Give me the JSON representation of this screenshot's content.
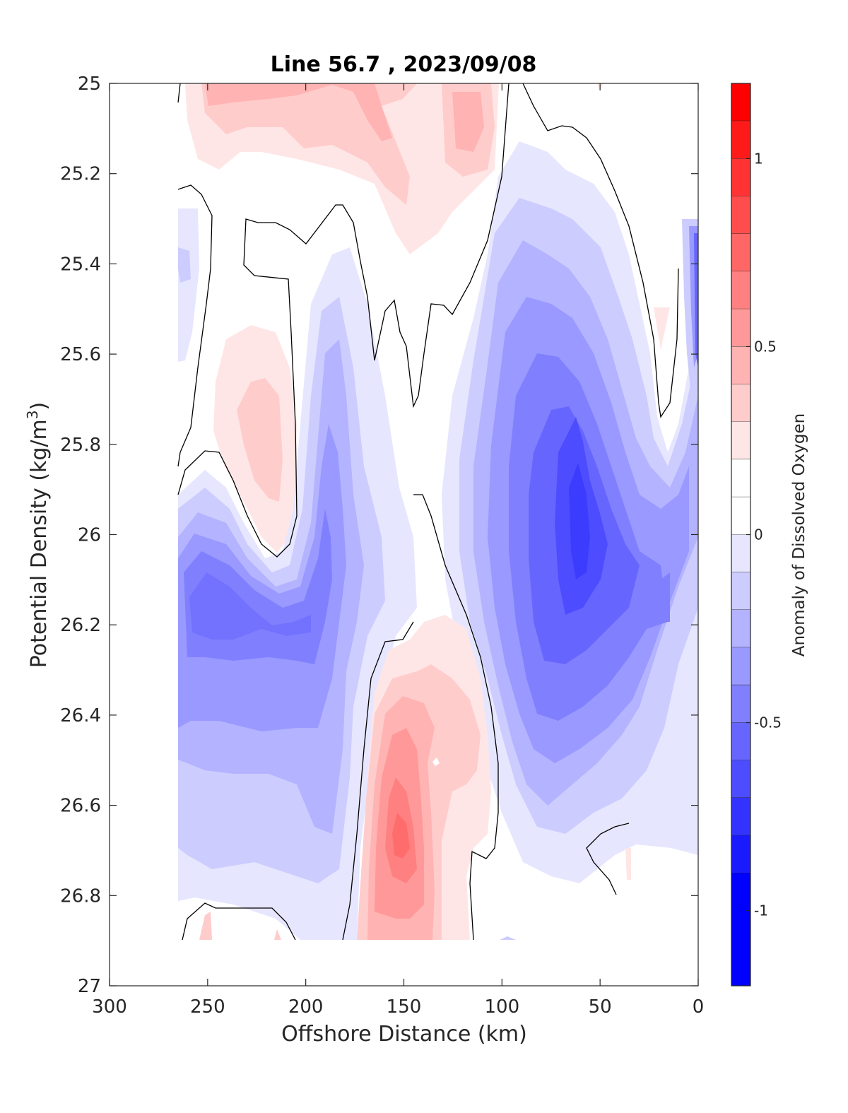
{
  "chart_data": {
    "type": "contour",
    "title": "Line 56.7 , 2023/09/08",
    "xlabel": "Offshore Distance (km)",
    "ylabel_main": "Potential Density (kg/m",
    "ylabel_sup": "3",
    "ylabel_close": ")",
    "xlim": [
      300,
      0
    ],
    "ylim": [
      25,
      27
    ],
    "x_ticks": [
      300,
      250,
      200,
      150,
      100,
      50,
      0
    ],
    "y_ticks": [
      25,
      25.2,
      25.4,
      25.6,
      25.8,
      26,
      26.2,
      26.4,
      26.6,
      26.8,
      27
    ],
    "y_tick_labels": [
      "25",
      "25.2",
      "25.4",
      "25.6",
      "25.8",
      "26",
      "26.2",
      "26.4",
      "26.6",
      "26.8",
      "27"
    ],
    "colorbar": {
      "label": "Anomaly of Dissolved Oxygen",
      "range": [
        -1.2,
        1.2
      ],
      "ticks": [
        1,
        0.5,
        0,
        -0.5,
        -1
      ],
      "tick_labels": [
        "1",
        "0.5",
        "0",
        "-0.5",
        "-1"
      ],
      "levels": [
        {
          "from": 1.1,
          "to": 1.2,
          "color": "#ff0000"
        },
        {
          "from": 1.0,
          "to": 1.1,
          "color": "#ff1a1a"
        },
        {
          "from": 0.9,
          "to": 1.0,
          "color": "#ff3333"
        },
        {
          "from": 0.8,
          "to": 0.9,
          "color": "#ff4d4d"
        },
        {
          "from": 0.7,
          "to": 0.8,
          "color": "#ff6666"
        },
        {
          "from": 0.6,
          "to": 0.7,
          "color": "#ff8080"
        },
        {
          "from": 0.5,
          "to": 0.6,
          "color": "#ff9999"
        },
        {
          "from": 0.4,
          "to": 0.5,
          "color": "#ffb3b3"
        },
        {
          "from": 0.3,
          "to": 0.4,
          "color": "#ffcccc"
        },
        {
          "from": 0.2,
          "to": 0.3,
          "color": "#ffe6e6"
        },
        {
          "from": 0.1,
          "to": 0.2,
          "color": "#ffffff"
        },
        {
          "from": 0.0,
          "to": 0.1,
          "color": "#ffffff"
        },
        {
          "from": -0.1,
          "to": 0.0,
          "color": "#e6e6ff"
        },
        {
          "from": -0.2,
          "to": -0.1,
          "color": "#ccccff"
        },
        {
          "from": -0.3,
          "to": -0.2,
          "color": "#b3b3ff"
        },
        {
          "from": -0.4,
          "to": -0.3,
          "color": "#9999ff"
        },
        {
          "from": -0.5,
          "to": -0.4,
          "color": "#8080ff"
        },
        {
          "from": -0.6,
          "to": -0.5,
          "color": "#6666ff"
        },
        {
          "from": -0.7,
          "to": -0.6,
          "color": "#4d4dff"
        },
        {
          "from": -0.8,
          "to": -0.7,
          "color": "#3333ff"
        },
        {
          "from": -0.9,
          "to": -0.8,
          "color": "#1a1aff"
        },
        {
          "from": -1.2,
          "to": -0.9,
          "color": "#0000ff"
        }
      ]
    },
    "features": [
      {
        "type": "high",
        "x_km": 150,
        "density": 26.7,
        "value": 0.7
      },
      {
        "type": "high",
        "x_km": 230,
        "density": 25.75,
        "value": 0.3
      },
      {
        "type": "high",
        "x_km": 120,
        "density": 25.1,
        "value": 0.35
      },
      {
        "type": "high",
        "x_km": 250,
        "density": 25.05,
        "value": 0.25
      },
      {
        "type": "high",
        "x_km": 160,
        "density": 25.05,
        "value": 0.3
      },
      {
        "type": "low",
        "x_km": 62,
        "density": 26.0,
        "value": -0.75
      },
      {
        "type": "low",
        "x_km": 230,
        "density": 26.2,
        "value": -0.5
      },
      {
        "type": "low",
        "x_km": 200,
        "density": 26.55,
        "value": -0.3
      },
      {
        "type": "low",
        "x_km": 10,
        "density": 25.6,
        "value": -0.4
      }
    ]
  }
}
